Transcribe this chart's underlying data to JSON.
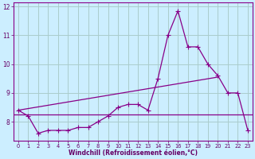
{
  "xlabel": "Windchill (Refroidissement éolien,°C)",
  "background_color": "#cceeff",
  "line_color": "#880088",
  "grid_color": "#aacccc",
  "x_data": [
    0,
    1,
    2,
    3,
    4,
    5,
    6,
    7,
    8,
    9,
    10,
    11,
    12,
    13,
    14,
    15,
    16,
    17,
    18,
    19,
    20,
    21,
    22,
    23
  ],
  "y_data": [
    8.4,
    8.2,
    7.6,
    7.7,
    7.7,
    7.7,
    7.8,
    7.8,
    8.0,
    8.2,
    8.5,
    8.6,
    8.6,
    8.4,
    9.5,
    11.0,
    11.85,
    10.6,
    10.6,
    10.0,
    9.6,
    9.0,
    9.0,
    7.7
  ],
  "trend1_x": [
    0,
    20
  ],
  "trend1_y": [
    8.4,
    9.55
  ],
  "trend2_y": 8.25,
  "xlim_left": -0.5,
  "xlim_right": 23.5,
  "ylim_bottom": 7.35,
  "ylim_top": 12.15,
  "yticks": [
    8,
    9,
    10,
    11,
    12
  ],
  "xticks": [
    0,
    1,
    2,
    3,
    4,
    5,
    6,
    7,
    8,
    9,
    10,
    11,
    12,
    13,
    14,
    15,
    16,
    17,
    18,
    19,
    20,
    21,
    22,
    23
  ],
  "xtick_fontsize": 4.8,
  "ytick_fontsize": 5.5,
  "xlabel_fontsize": 5.5,
  "font_color": "#660066",
  "marker": "+",
  "markersize": 4.0,
  "linewidth": 0.9
}
